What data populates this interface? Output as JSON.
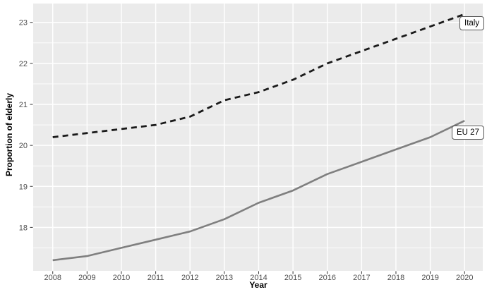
{
  "chart_data": {
    "type": "line",
    "title": "",
    "xlabel": "Year",
    "ylabel": "Proportion of elderly",
    "x": [
      2008,
      2009,
      2010,
      2011,
      2012,
      2013,
      2014,
      2015,
      2016,
      2017,
      2018,
      2019,
      2020
    ],
    "x_tick_labels": [
      "2008",
      "2009",
      "2010",
      "2011",
      "2012",
      "2013",
      "2014",
      "2015",
      "2016",
      "2017",
      "2018",
      "2019",
      "2020"
    ],
    "y_major_ticks": [
      18,
      19,
      20,
      21,
      22,
      23
    ],
    "y_tick_labels": [
      "18",
      "19",
      "20",
      "21",
      "22",
      "23"
    ],
    "y_minor_ticks": [
      17.5,
      18.5,
      19.5,
      20.5,
      21.5,
      22.5
    ],
    "xlim": [
      2007.43,
      2020.53
    ],
    "ylim": [
      16.94,
      23.46
    ],
    "grid": "white major gridlines (x and y) plus y minor gridlines on gray panel",
    "legend_position": "direct labels at right ends of lines",
    "series": [
      {
        "name": "Italy",
        "label": "Italy",
        "style": "dashed",
        "color": "#1a1a1a",
        "values": [
          20.2,
          20.3,
          20.4,
          20.5,
          20.7,
          21.1,
          21.3,
          21.6,
          22.0,
          22.3,
          22.6,
          22.9,
          23.2
        ]
      },
      {
        "name": "EU 27",
        "label": "EU 27",
        "style": "solid",
        "color": "#7f7f7f",
        "values": [
          17.2,
          17.3,
          17.5,
          17.7,
          17.9,
          18.2,
          18.6,
          18.9,
          19.3,
          19.6,
          19.9,
          20.2,
          20.6
        ]
      }
    ]
  },
  "colors": {
    "panel_bg": "#EBEBEB",
    "grid": "#FFFFFF",
    "axis_text": "#4D4D4D",
    "axis_title": "#000000",
    "tick_mark": "#333333",
    "label_box_bg": "#FFFFFF",
    "label_box_border": "#555555"
  }
}
